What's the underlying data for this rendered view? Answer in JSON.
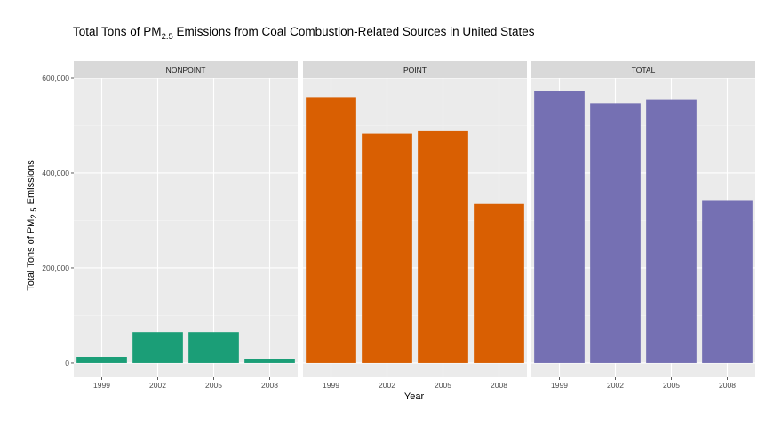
{
  "chart_data": {
    "type": "bar",
    "title": {
      "prefix": "Total Tons of PM",
      "subscript": "2.5",
      "suffix": " Emissions from Coal Combustion-Related Sources in United States"
    },
    "xlabel": "Year",
    "ylabel": {
      "prefix": "Total Tons of PM",
      "subscript": "2.5",
      "suffix": " Emissions"
    },
    "categories": [
      "1999",
      "2002",
      "2005",
      "2008"
    ],
    "ylim": [
      -30000,
      600000
    ],
    "yticks": [
      0,
      200000,
      400000,
      600000
    ],
    "ytick_labels": [
      "0",
      "200,000",
      "400,000",
      "600,000"
    ],
    "grid": true,
    "legend": "none",
    "panels": [
      {
        "name": "NONPOINT",
        "color": "#1b9e77",
        "values": [
          13000,
          65000,
          65000,
          8000
        ]
      },
      {
        "name": "POINT",
        "color": "#d95f02",
        "values": [
          560000,
          483000,
          488000,
          335000
        ]
      },
      {
        "name": "TOTAL",
        "color": "#7570b3",
        "values": [
          573000,
          547000,
          554000,
          343000
        ]
      }
    ]
  }
}
